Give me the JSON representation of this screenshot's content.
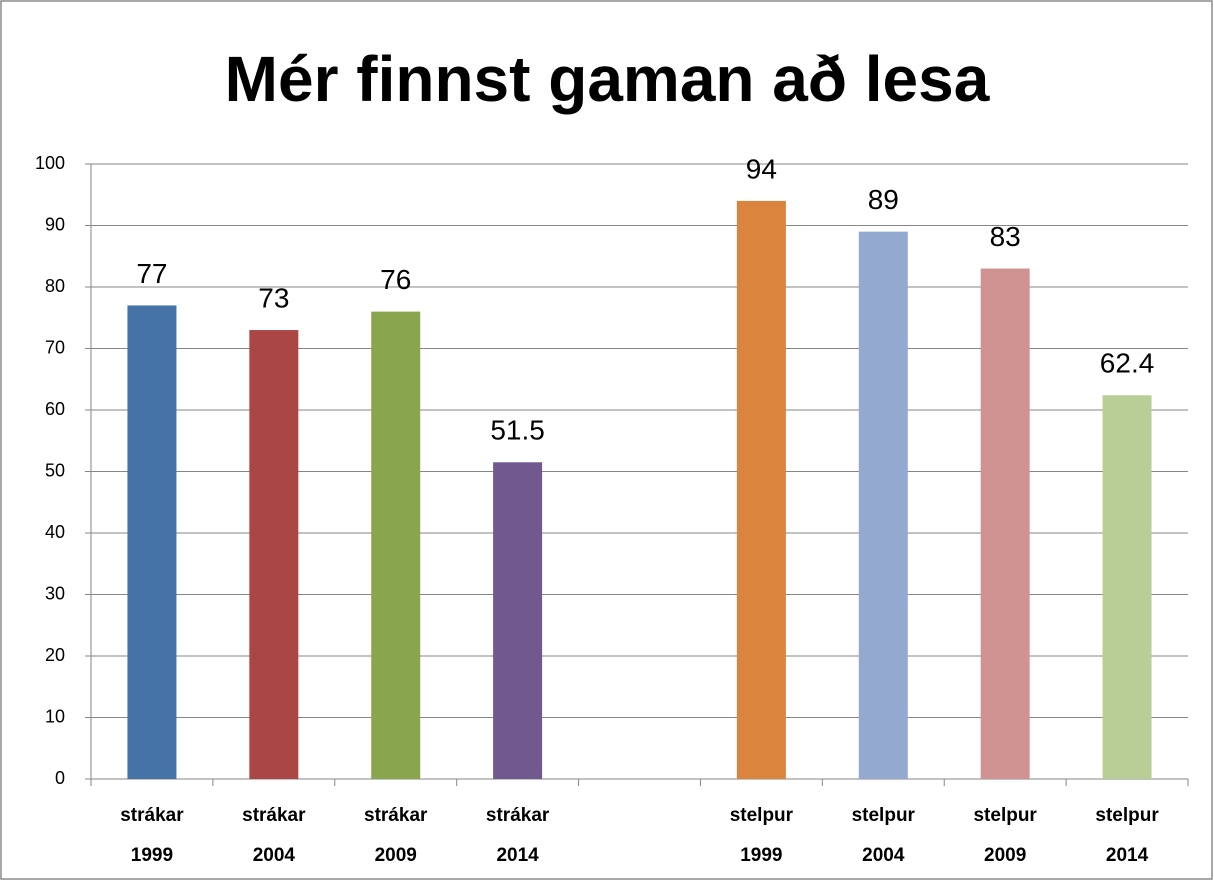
{
  "chart_data": {
    "type": "bar",
    "title": "Mér finnst gaman að lesa",
    "categories": [
      [
        "strákar",
        "1999"
      ],
      [
        "strákar",
        "2004"
      ],
      [
        "strákar",
        "2009"
      ],
      [
        "strákar",
        "2014"
      ],
      null,
      [
        "stelpur",
        "1999"
      ],
      [
        "stelpur",
        "2004"
      ],
      [
        "stelpur",
        "2009"
      ],
      [
        "stelpur",
        "2014"
      ]
    ],
    "values": [
      77,
      73,
      76,
      51.5,
      null,
      94,
      89,
      83,
      62.4
    ],
    "colors": [
      "#4572a7",
      "#aa4643",
      "#89a54e",
      "#71588f",
      null,
      "#db843d",
      "#93a9cf",
      "#d19392",
      "#b9cd96"
    ],
    "ylim": [
      0,
      100
    ],
    "yticks": [
      0,
      10,
      20,
      30,
      40,
      50,
      60,
      70,
      80,
      90,
      100
    ],
    "grid": true
  }
}
